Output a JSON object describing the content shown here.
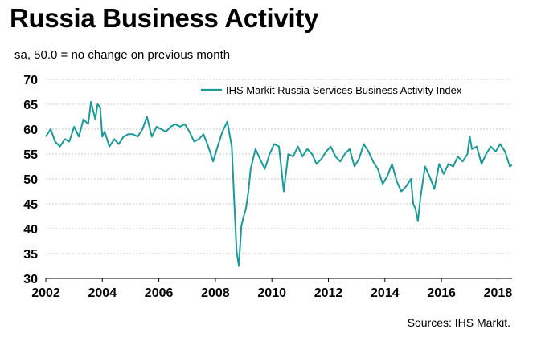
{
  "chart_data": {
    "type": "line",
    "title": "Russia Business Activity",
    "subtitle": "sa, 50.0 = no change on previous month",
    "source": "Sources: IHS Markit.",
    "ylim": [
      30,
      70
    ],
    "xlim": [
      2002,
      2018.5
    ],
    "grid": true,
    "legend_placement": "top-right",
    "yticks": [
      "30",
      "35",
      "40",
      "45",
      "50",
      "55",
      "60",
      "65",
      "70"
    ],
    "xticks": [
      "2002",
      "2004",
      "2006",
      "2008",
      "2010",
      "2012",
      "2014",
      "2016",
      "2018"
    ],
    "series": [
      {
        "name": "IHS Markit Russia Services Business Activity Index",
        "color": "#1a9a9a",
        "x": [
          2002.0,
          2002.17,
          2002.33,
          2002.5,
          2002.67,
          2002.83,
          2003.0,
          2003.17,
          2003.33,
          2003.5,
          2003.6,
          2003.75,
          2003.83,
          2003.92,
          2004.0,
          2004.08,
          2004.25,
          2004.42,
          2004.58,
          2004.75,
          2004.92,
          2005.08,
          2005.25,
          2005.42,
          2005.58,
          2005.75,
          2005.92,
          2006.08,
          2006.25,
          2006.42,
          2006.58,
          2006.75,
          2006.92,
          2007.08,
          2007.25,
          2007.42,
          2007.58,
          2007.75,
          2007.92,
          2008.08,
          2008.25,
          2008.42,
          2008.58,
          2008.67,
          2008.75,
          2008.83,
          2008.92,
          2009.0,
          2009.08,
          2009.17,
          2009.25,
          2009.42,
          2009.58,
          2009.75,
          2009.92,
          2010.08,
          2010.25,
          2010.42,
          2010.58,
          2010.75,
          2010.92,
          2011.08,
          2011.25,
          2011.42,
          2011.58,
          2011.75,
          2011.92,
          2012.08,
          2012.25,
          2012.42,
          2012.58,
          2012.75,
          2012.92,
          2013.08,
          2013.25,
          2013.42,
          2013.58,
          2013.75,
          2013.92,
          2014.08,
          2014.25,
          2014.42,
          2014.58,
          2014.75,
          2014.92,
          2015.0,
          2015.08,
          2015.17,
          2015.25,
          2015.42,
          2015.58,
          2015.75,
          2015.92,
          2016.08,
          2016.25,
          2016.42,
          2016.58,
          2016.75,
          2016.92,
          2017.0,
          2017.08,
          2017.25,
          2017.42,
          2017.58,
          2017.75,
          2017.92,
          2018.08,
          2018.25,
          2018.42,
          2018.5
        ],
        "values": [
          58.5,
          60.0,
          57.5,
          56.5,
          58.0,
          57.5,
          60.5,
          58.5,
          62.0,
          61.0,
          65.5,
          62.0,
          65.0,
          64.5,
          58.5,
          59.5,
          56.5,
          58.0,
          57.0,
          58.5,
          59.0,
          59.0,
          58.5,
          60.0,
          62.5,
          58.5,
          60.5,
          60.0,
          59.5,
          60.5,
          61.0,
          60.5,
          61.0,
          59.5,
          57.5,
          58.0,
          59.0,
          56.5,
          53.5,
          56.5,
          59.5,
          61.5,
          56.5,
          45.0,
          35.5,
          32.5,
          40.5,
          42.5,
          44.0,
          47.5,
          52.0,
          56.0,
          54.0,
          52.0,
          55.0,
          57.0,
          56.5,
          47.5,
          55.0,
          54.5,
          56.5,
          54.5,
          56.0,
          55.0,
          53.0,
          54.0,
          55.5,
          56.5,
          54.5,
          53.5,
          55.0,
          56.0,
          52.5,
          54.0,
          57.0,
          55.5,
          53.5,
          52.0,
          49.0,
          50.5,
          53.0,
          49.5,
          47.5,
          48.5,
          50.0,
          45.0,
          44.0,
          41.5,
          46.0,
          52.5,
          50.5,
          48.0,
          53.0,
          51.0,
          53.0,
          52.5,
          54.5,
          53.5,
          55.0,
          58.5,
          56.0,
          56.5,
          53.0,
          55.0,
          56.5,
          55.5,
          57.0,
          55.5,
          52.5,
          52.8
        ]
      }
    ]
  }
}
